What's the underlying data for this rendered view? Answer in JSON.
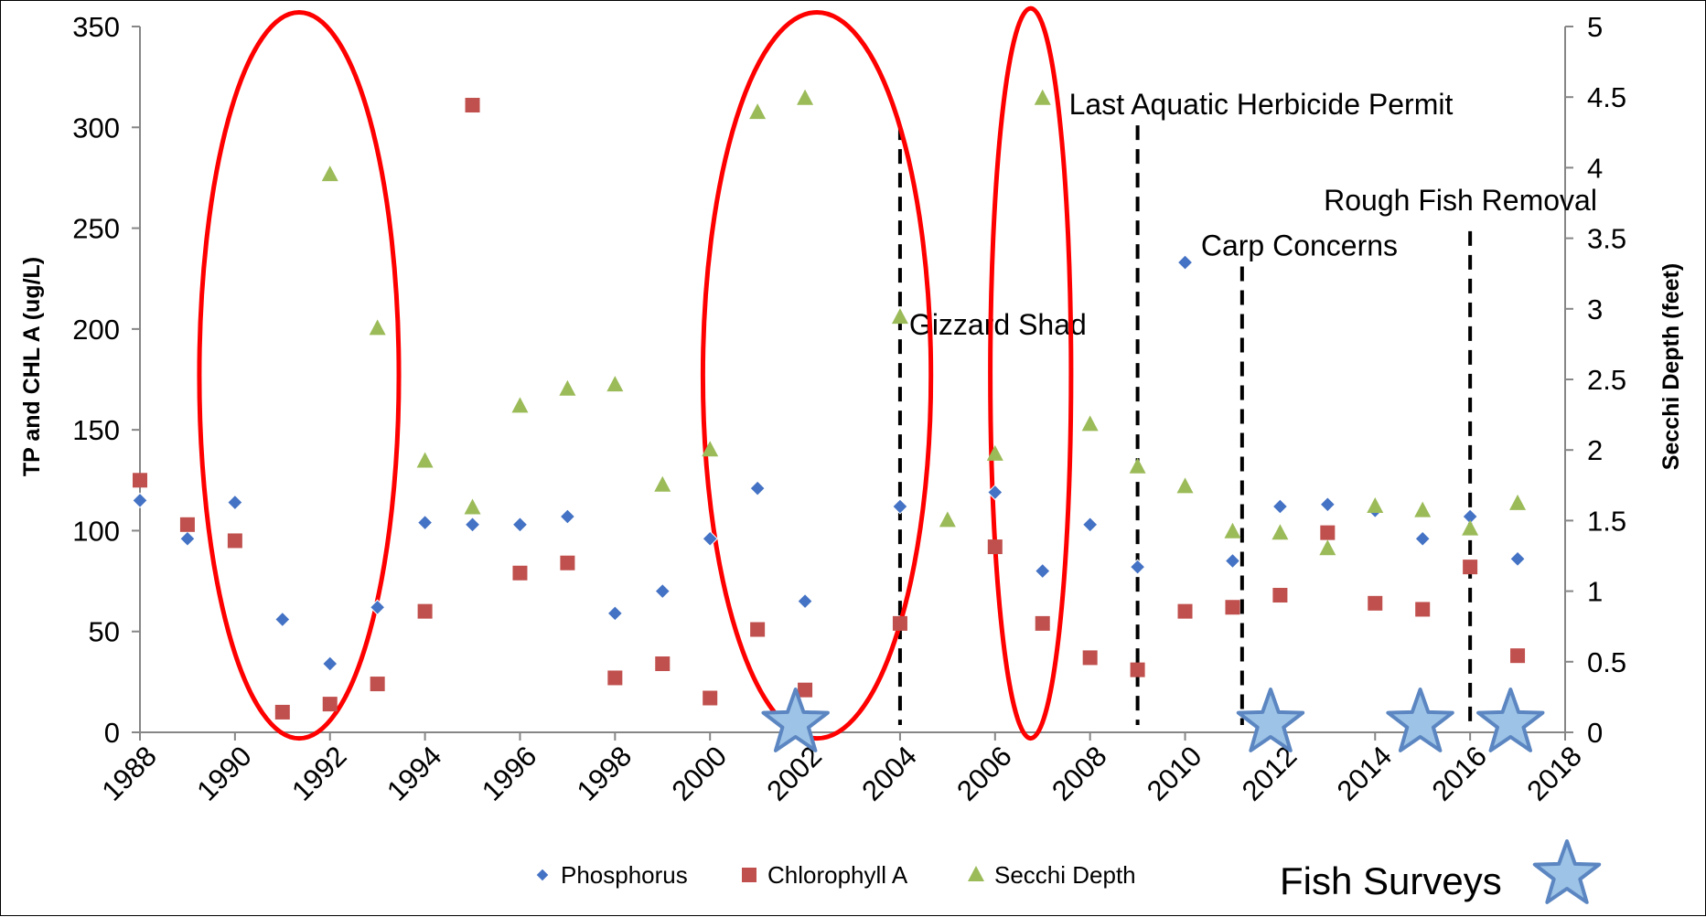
{
  "chart_data": {
    "type": "scatter",
    "title": "",
    "xlabel": "",
    "ylabel": "TP and CHL A (ug/L)",
    "y2label": "Secchi Depth (feet)",
    "xlim": [
      1988,
      2018
    ],
    "ylim": [
      0,
      350
    ],
    "y2lim": [
      0,
      5
    ],
    "x_ticks": [
      1988,
      1990,
      1992,
      1994,
      1996,
      1998,
      2000,
      2002,
      2004,
      2006,
      2008,
      2010,
      2012,
      2014,
      2016,
      2018
    ],
    "y_ticks": [
      0,
      50,
      100,
      150,
      200,
      250,
      300,
      350
    ],
    "y2_ticks": [
      "0",
      "0.5",
      "1",
      "1.5",
      "2",
      "2.5",
      "3",
      "3.5",
      "4",
      "4.5",
      "5"
    ],
    "grid": false,
    "legend_position": "bottom",
    "series": [
      {
        "name": "Phosphorus",
        "axis": "left",
        "marker": "diamond",
        "color": "#4472C4",
        "points": [
          [
            1988,
            115
          ],
          [
            1989,
            96
          ],
          [
            1990,
            114
          ],
          [
            1991,
            56
          ],
          [
            1992,
            34
          ],
          [
            1993,
            62
          ],
          [
            1994,
            104
          ],
          [
            1995,
            103
          ],
          [
            1996,
            103
          ],
          [
            1997,
            107
          ],
          [
            1998,
            59
          ],
          [
            1999,
            70
          ],
          [
            2000,
            96
          ],
          [
            2001,
            121
          ],
          [
            2002,
            65
          ],
          [
            2004,
            112
          ],
          [
            2006,
            119
          ],
          [
            2007,
            80
          ],
          [
            2008,
            103
          ],
          [
            2009,
            82
          ],
          [
            2010,
            233
          ],
          [
            2011,
            85
          ],
          [
            2012,
            112
          ],
          [
            2013,
            113
          ],
          [
            2014,
            110
          ],
          [
            2015,
            96
          ],
          [
            2016,
            107
          ],
          [
            2017,
            86
          ]
        ]
      },
      {
        "name": "Chlorophyll A",
        "axis": "left",
        "marker": "square",
        "color": "#C0504D",
        "points": [
          [
            1988,
            125
          ],
          [
            1989,
            103
          ],
          [
            1990,
            95
          ],
          [
            1991,
            10
          ],
          [
            1992,
            14
          ],
          [
            1993,
            24
          ],
          [
            1994,
            60
          ],
          [
            1995,
            311
          ],
          [
            1996,
            79
          ],
          [
            1997,
            84
          ],
          [
            1998,
            27
          ],
          [
            1999,
            34
          ],
          [
            2000,
            17
          ],
          [
            2001,
            51
          ],
          [
            2002,
            21
          ],
          [
            2004,
            54
          ],
          [
            2006,
            92
          ],
          [
            2007,
            54
          ],
          [
            2008,
            37
          ],
          [
            2009,
            31
          ],
          [
            2010,
            60
          ],
          [
            2011,
            62
          ],
          [
            2012,
            68
          ],
          [
            2013,
            99
          ],
          [
            2014,
            64
          ],
          [
            2015,
            61
          ],
          [
            2016,
            82
          ],
          [
            2017,
            38
          ]
        ]
      },
      {
        "name": "Secchi Depth",
        "axis": "right",
        "marker": "triangle",
        "color": "#9BBB59",
        "points": [
          [
            1992,
            3.95
          ],
          [
            1993,
            2.86
          ],
          [
            1994,
            1.92
          ],
          [
            1995,
            1.59
          ],
          [
            1996,
            2.31
          ],
          [
            1997,
            2.43
          ],
          [
            1998,
            2.46
          ],
          [
            1999,
            1.75
          ],
          [
            2000,
            2.0
          ],
          [
            2001,
            4.39
          ],
          [
            2002,
            4.49
          ],
          [
            2004,
            2.94
          ],
          [
            2005,
            1.5
          ],
          [
            2006,
            1.97
          ],
          [
            2007,
            4.49
          ],
          [
            2008,
            2.18
          ],
          [
            2009,
            1.88
          ],
          [
            2010,
            1.74
          ],
          [
            2011,
            1.42
          ],
          [
            2012,
            1.41
          ],
          [
            2013,
            1.3
          ],
          [
            2014,
            1.6
          ],
          [
            2015,
            1.57
          ],
          [
            2016,
            1.44
          ],
          [
            2017,
            1.62
          ]
        ]
      }
    ],
    "event_lines": [
      {
        "x": 2004,
        "label": "Gizzard Shad",
        "top_y2": 4.3
      },
      {
        "x": 2009,
        "label": "Last Aquatic Herbicide Permit",
        "top_y2": 4.3
      },
      {
        "x": 2011.2,
        "label": "Carp Concerns",
        "top_y2": 3.3
      },
      {
        "x": 2016,
        "label": "Rough Fish Removal",
        "top_y2": 3.55
      }
    ],
    "ellipses": [
      {
        "cx": 1991.35,
        "cy": 177,
        "rx": 2.1,
        "ry": 180
      },
      {
        "cx": 2002.25,
        "cy": 177,
        "rx": 2.4,
        "ry": 180
      },
      {
        "cx": 2006.75,
        "cy": 178,
        "rx": 0.85,
        "ry": 181
      }
    ],
    "fish_surveys": {
      "label": "Fish Surveys",
      "years": [
        2001.8,
        2011.8,
        2014.95,
        2016.85
      ]
    },
    "colors": {
      "ellipse": "#FF0000",
      "star_fill": "#9DC3E6",
      "star_stroke": "#5B86C1",
      "event_line": "#000000"
    }
  }
}
